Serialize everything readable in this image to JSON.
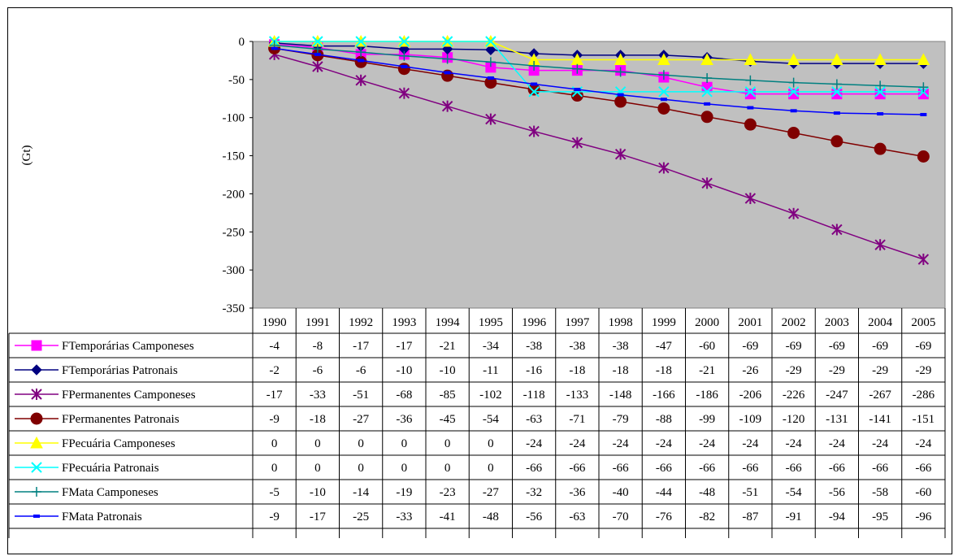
{
  "chart_data": {
    "type": "line",
    "ylabel": "(Gt)",
    "ylim": [
      -350,
      0
    ],
    "yticks": [
      0,
      -50,
      -100,
      -150,
      -200,
      -250,
      -300,
      -350
    ],
    "plot_background": "#c0c0c0",
    "grid": false,
    "legend_placement": "data-table",
    "categories": [
      "1990",
      "1991",
      "1992",
      "1993",
      "1994",
      "1995",
      "1996",
      "1997",
      "1998",
      "1999",
      "2000",
      "2001",
      "2002",
      "2003",
      "2004",
      "2005"
    ],
    "series": [
      {
        "name": "FTemporárias Camponeses",
        "color": "#ff00ff",
        "marker": "square",
        "values": [
          -4,
          -8,
          -17,
          -17,
          -21,
          -34,
          -38,
          -38,
          -38,
          -47,
          -60,
          -69,
          -69,
          -69,
          -69,
          -69
        ]
      },
      {
        "name": "FTemporárias Patronais",
        "color": "#000080",
        "marker": "diamond",
        "values": [
          -2,
          -6,
          -6,
          -10,
          -10,
          -11,
          -16,
          -18,
          -18,
          -18,
          -21,
          -26,
          -29,
          -29,
          -29,
          -29
        ]
      },
      {
        "name": "FPermanentes Camponeses",
        "color": "#800080",
        "marker": "asterisk",
        "values": [
          -17,
          -33,
          -51,
          -68,
          -85,
          -102,
          -118,
          -133,
          -148,
          -166,
          -186,
          -206,
          -226,
          -247,
          -267,
          -286
        ]
      },
      {
        "name": "FPermanentes Patronais",
        "color": "#800000",
        "marker": "circle",
        "values": [
          -9,
          -18,
          -27,
          -36,
          -45,
          -54,
          -63,
          -71,
          -79,
          -88,
          -99,
          -109,
          -120,
          -131,
          -141,
          -151
        ]
      },
      {
        "name": "FPecuária Camponeses",
        "color": "#ffff00",
        "marker": "triangle",
        "values": [
          0,
          0,
          0,
          0,
          0,
          0,
          -24,
          -24,
          -24,
          -24,
          -24,
          -24,
          -24,
          -24,
          -24,
          -24
        ]
      },
      {
        "name": "FPecuária Patronais",
        "color": "#00ffff",
        "marker": "x",
        "values": [
          0,
          0,
          0,
          0,
          0,
          0,
          -66,
          -66,
          -66,
          -66,
          -66,
          -66,
          -66,
          -66,
          -66,
          -66
        ]
      },
      {
        "name": "FMata Camponeses",
        "color": "#008080",
        "marker": "plus",
        "values": [
          -5,
          -10,
          -14,
          -19,
          -23,
          -27,
          -32,
          -36,
          -40,
          -44,
          -48,
          -51,
          -54,
          -56,
          -58,
          -60
        ]
      },
      {
        "name": "FMata Patronais",
        "color": "#0000ff",
        "marker": "dash",
        "values": [
          -9,
          -17,
          -25,
          -33,
          -41,
          -48,
          -56,
          -63,
          -70,
          -76,
          -82,
          -87,
          -91,
          -94,
          -95,
          -96
        ]
      }
    ]
  }
}
